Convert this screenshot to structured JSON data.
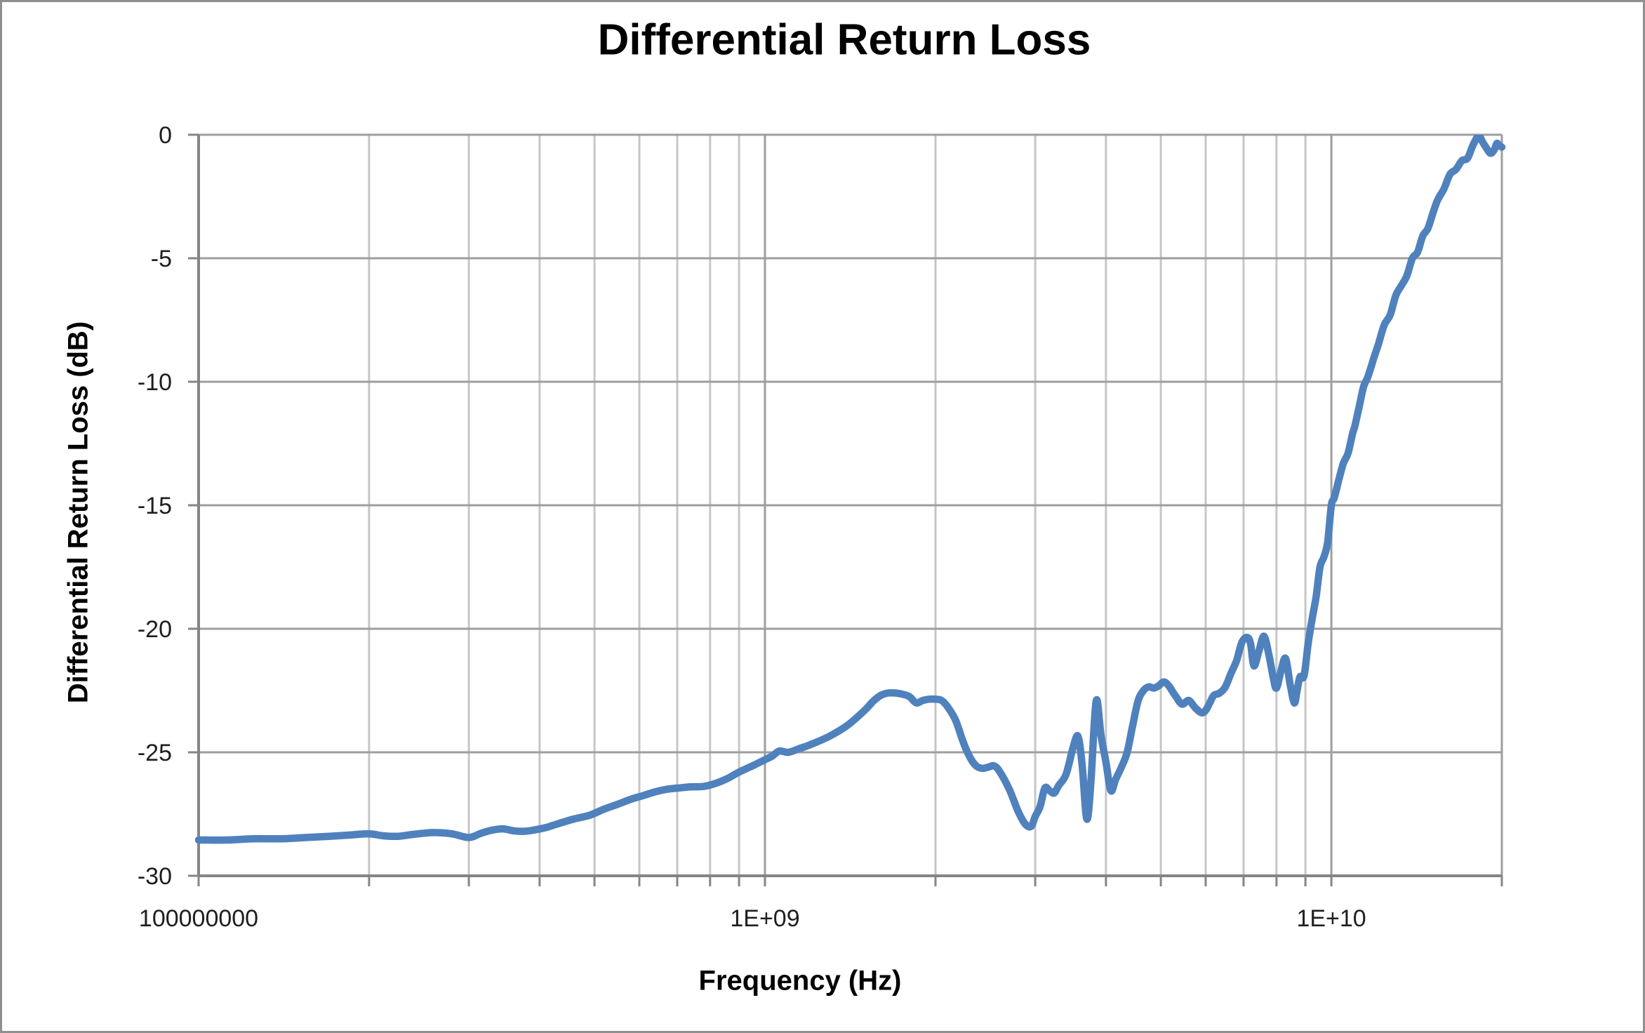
{
  "chart_data": {
    "type": "line",
    "title": "Differential Return Loss",
    "legend": "none",
    "grid": "both",
    "colors": {
      "line": "#4F81BD",
      "grid_major": "#9E9E9E",
      "grid_minor": "#C6C6C6",
      "axis": "#858585",
      "tick_text": "#1f1f1f",
      "border": "#8F8F8F"
    },
    "x_axis": {
      "label": "Frequency (Hz)",
      "scale": "log",
      "min": 100000000.0,
      "max": 20000000000.0,
      "tick_labels": [
        {
          "f": 100000000.0,
          "label": "100000000"
        },
        {
          "f": 1000000000.0,
          "label": "1E+09"
        },
        {
          "f": 10000000000.0,
          "label": "1E+10"
        }
      ],
      "major_gridlines": [
        1000000000.0,
        10000000000.0,
        20000000000.0
      ],
      "minor_gridlines": [
        200000000.0,
        300000000.0,
        400000000.0,
        500000000.0,
        600000000.0,
        700000000.0,
        800000000.0,
        900000000.0,
        2000000000.0,
        3000000000.0,
        4000000000.0,
        5000000000.0,
        6000000000.0,
        7000000000.0,
        8000000000.0,
        9000000000.0
      ],
      "tick_marks": [
        100000000.0,
        200000000.0,
        300000000.0,
        400000000.0,
        500000000.0,
        600000000.0,
        700000000.0,
        800000000.0,
        900000000.0,
        1000000000.0,
        2000000000.0,
        3000000000.0,
        4000000000.0,
        5000000000.0,
        6000000000.0,
        7000000000.0,
        8000000000.0,
        9000000000.0,
        10000000000.0,
        20000000000.0
      ]
    },
    "y_axis": {
      "label": "Differential Return Loss (dB)",
      "min": -30,
      "max": 0,
      "tick_step": 5,
      "ticks": [
        {
          "v": 0,
          "label": "0"
        },
        {
          "v": -5,
          "label": "-5"
        },
        {
          "v": -10,
          "label": "-10"
        },
        {
          "v": -15,
          "label": "-15"
        },
        {
          "v": -20,
          "label": "-20"
        },
        {
          "v": -25,
          "label": "-25"
        },
        {
          "v": -30,
          "label": "-30"
        }
      ]
    },
    "series": [
      {
        "name": "Differential Return Loss",
        "color": "#4F81BD",
        "width": 10.5,
        "points": [
          [
            100000000.0,
            -28.55
          ],
          [
            112000000.0,
            -28.55
          ],
          [
            125000000.0,
            -28.5
          ],
          [
            140000000.0,
            -28.5
          ],
          [
            155000000.0,
            -28.45
          ],
          [
            170000000.0,
            -28.4
          ],
          [
            185000000.0,
            -28.35
          ],
          [
            200000000.0,
            -28.3
          ],
          [
            212000000.0,
            -28.38
          ],
          [
            225000000.0,
            -28.4
          ],
          [
            240000000.0,
            -28.32
          ],
          [
            260000000.0,
            -28.25
          ],
          [
            280000000.0,
            -28.3
          ],
          [
            300000000.0,
            -28.45
          ],
          [
            315000000.0,
            -28.28
          ],
          [
            330000000.0,
            -28.15
          ],
          [
            345000000.0,
            -28.1
          ],
          [
            360000000.0,
            -28.18
          ],
          [
            375000000.0,
            -28.2
          ],
          [
            390000000.0,
            -28.15
          ],
          [
            410000000.0,
            -28.05
          ],
          [
            430000000.0,
            -27.9
          ],
          [
            460000000.0,
            -27.7
          ],
          [
            490000000.0,
            -27.55
          ],
          [
            520000000.0,
            -27.3
          ],
          [
            550000000.0,
            -27.1
          ],
          [
            580000000.0,
            -26.9
          ],
          [
            610000000.0,
            -26.75
          ],
          [
            640000000.0,
            -26.6
          ],
          [
            670000000.0,
            -26.5
          ],
          [
            700000000.0,
            -26.45
          ],
          [
            740000000.0,
            -26.4
          ],
          [
            780000000.0,
            -26.38
          ],
          [
            820000000.0,
            -26.25
          ],
          [
            860000000.0,
            -26.05
          ],
          [
            900000000.0,
            -25.8
          ],
          [
            950000000.0,
            -25.55
          ],
          [
            1000000000.0,
            -25.3
          ],
          [
            1030000000.0,
            -25.15
          ],
          [
            1060000000.0,
            -24.95
          ],
          [
            1100000000.0,
            -25.0
          ],
          [
            1150000000.0,
            -24.85
          ],
          [
            1200000000.0,
            -24.7
          ],
          [
            1300000000.0,
            -24.35
          ],
          [
            1400000000.0,
            -23.9
          ],
          [
            1500000000.0,
            -23.3
          ],
          [
            1550000000.0,
            -22.95
          ],
          [
            1600000000.0,
            -22.7
          ],
          [
            1650000000.0,
            -22.6
          ],
          [
            1700000000.0,
            -22.6
          ],
          [
            1750000000.0,
            -22.65
          ],
          [
            1800000000.0,
            -22.75
          ],
          [
            1850000000.0,
            -23.0
          ],
          [
            1900000000.0,
            -22.9
          ],
          [
            1950000000.0,
            -22.85
          ],
          [
            2000000000.0,
            -22.85
          ],
          [
            2050000000.0,
            -22.9
          ],
          [
            2100000000.0,
            -23.15
          ],
          [
            2170000000.0,
            -23.7
          ],
          [
            2240000000.0,
            -24.6
          ],
          [
            2300000000.0,
            -25.2
          ],
          [
            2360000000.0,
            -25.55
          ],
          [
            2420000000.0,
            -25.65
          ],
          [
            2480000000.0,
            -25.6
          ],
          [
            2540000000.0,
            -25.55
          ],
          [
            2600000000.0,
            -25.8
          ],
          [
            2700000000.0,
            -26.5
          ],
          [
            2800000000.0,
            -27.4
          ],
          [
            2880000000.0,
            -27.9
          ],
          [
            2950000000.0,
            -28.0
          ],
          [
            3000000000.0,
            -27.6
          ],
          [
            3060000000.0,
            -27.2
          ],
          [
            3120000000.0,
            -26.45
          ],
          [
            3180000000.0,
            -26.55
          ],
          [
            3240000000.0,
            -26.65
          ],
          [
            3300000000.0,
            -26.35
          ],
          [
            3400000000.0,
            -25.9
          ],
          [
            3500000000.0,
            -24.8
          ],
          [
            3570000000.0,
            -24.35
          ],
          [
            3630000000.0,
            -25.5
          ],
          [
            3700000000.0,
            -27.7
          ],
          [
            3760000000.0,
            -26.3
          ],
          [
            3820000000.0,
            -23.6
          ],
          [
            3860000000.0,
            -22.9
          ],
          [
            3920000000.0,
            -24.3
          ],
          [
            4000000000.0,
            -25.4
          ],
          [
            4080000000.0,
            -26.55
          ],
          [
            4160000000.0,
            -26.1
          ],
          [
            4260000000.0,
            -25.6
          ],
          [
            4360000000.0,
            -25.0
          ],
          [
            4460000000.0,
            -23.9
          ],
          [
            4560000000.0,
            -22.9
          ],
          [
            4660000000.0,
            -22.5
          ],
          [
            4760000000.0,
            -22.35
          ],
          [
            4860000000.0,
            -22.4
          ],
          [
            4960000000.0,
            -22.3
          ],
          [
            5060000000.0,
            -22.15
          ],
          [
            5160000000.0,
            -22.3
          ],
          [
            5300000000.0,
            -22.7
          ],
          [
            5450000000.0,
            -23.05
          ],
          [
            5600000000.0,
            -22.9
          ],
          [
            5750000000.0,
            -23.2
          ],
          [
            5900000000.0,
            -23.4
          ],
          [
            6000000000.0,
            -23.3
          ],
          [
            6100000000.0,
            -23.0
          ],
          [
            6200000000.0,
            -22.7
          ],
          [
            6350000000.0,
            -22.6
          ],
          [
            6500000000.0,
            -22.35
          ],
          [
            6650000000.0,
            -21.8
          ],
          [
            6800000000.0,
            -21.3
          ],
          [
            6950000000.0,
            -20.55
          ],
          [
            7100000000.0,
            -20.35
          ],
          [
            7200000000.0,
            -20.6
          ],
          [
            7300000000.0,
            -21.5
          ],
          [
            7450000000.0,
            -20.9
          ],
          [
            7600000000.0,
            -20.3
          ],
          [
            7750000000.0,
            -21.0
          ],
          [
            7900000000.0,
            -22.0
          ],
          [
            8000000000.0,
            -22.4
          ],
          [
            8150000000.0,
            -21.7
          ],
          [
            8300000000.0,
            -21.2
          ],
          [
            8450000000.0,
            -22.2
          ],
          [
            8600000000.0,
            -23.0
          ],
          [
            8700000000.0,
            -22.5
          ],
          [
            8800000000.0,
            -21.95
          ],
          [
            8950000000.0,
            -21.9
          ],
          [
            9100000000.0,
            -20.6
          ],
          [
            9250000000.0,
            -19.6
          ],
          [
            9400000000.0,
            -18.7
          ],
          [
            9550000000.0,
            -17.5
          ],
          [
            9700000000.0,
            -17.1
          ],
          [
            9850000000.0,
            -16.5
          ],
          [
            10000000000.0,
            -15.0
          ],
          [
            10120000000.0,
            -14.7
          ],
          [
            10300000000.0,
            -14.0
          ],
          [
            10500000000.0,
            -13.3
          ],
          [
            10700000000.0,
            -12.9
          ],
          [
            10900000000.0,
            -12.1
          ],
          [
            11000000000.0,
            -11.8
          ],
          [
            11200000000.0,
            -11.0
          ],
          [
            11400000000.0,
            -10.2
          ],
          [
            11600000000.0,
            -9.8
          ],
          [
            11900000000.0,
            -9.0
          ],
          [
            12100000000.0,
            -8.5
          ],
          [
            12400000000.0,
            -7.7
          ],
          [
            12700000000.0,
            -7.3
          ],
          [
            13000000000.0,
            -6.5
          ],
          [
            13300000000.0,
            -6.1
          ],
          [
            13600000000.0,
            -5.7
          ],
          [
            13900000000.0,
            -5.0
          ],
          [
            14200000000.0,
            -4.75
          ],
          [
            14500000000.0,
            -4.1
          ],
          [
            14800000000.0,
            -3.8
          ],
          [
            15100000000.0,
            -3.2
          ],
          [
            15400000000.0,
            -2.65
          ],
          [
            15800000000.0,
            -2.2
          ],
          [
            16200000000.0,
            -1.6
          ],
          [
            16600000000.0,
            -1.4
          ],
          [
            17000000000.0,
            -1.05
          ],
          [
            17400000000.0,
            -0.95
          ],
          [
            17800000000.0,
            -0.4
          ],
          [
            18200000000.0,
            -0.05
          ],
          [
            18500000000.0,
            -0.3
          ],
          [
            18800000000.0,
            -0.55
          ],
          [
            19100000000.0,
            -0.75
          ],
          [
            19400000000.0,
            -0.6
          ],
          [
            19600000000.0,
            -0.35
          ],
          [
            19800000000.0,
            -0.45
          ],
          [
            20000000000.0,
            -0.5
          ]
        ]
      }
    ]
  }
}
